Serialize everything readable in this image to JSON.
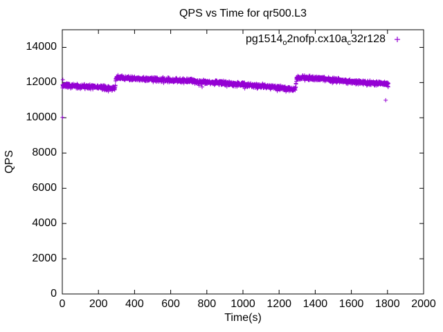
{
  "chart_data": {
    "type": "scatter",
    "title": "QPS vs Time for qr500.L3",
    "xlabel": "Time(s)",
    "ylabel": "QPS",
    "xlim": [
      0,
      2000
    ],
    "ylim": [
      0,
      15000
    ],
    "xticks": [
      0,
      200,
      400,
      600,
      800,
      1000,
      1200,
      1400,
      1600,
      1800,
      2000
    ],
    "yticks": [
      0,
      2000,
      4000,
      6000,
      8000,
      10000,
      12000,
      14000
    ],
    "grid": false,
    "tick_style": "inward-mirrored",
    "legend_position": "top-right-inside",
    "axis_color": "#000000",
    "series": [
      {
        "name": "pg1514_o2nofp.cx10a_c32r128",
        "name_parts": [
          {
            "text": "pg1514",
            "sub": false
          },
          {
            "text": "o",
            "sub": true
          },
          {
            "text": "2nofp.cx10a",
            "sub": false
          },
          {
            "text": "c",
            "sub": true
          },
          {
            "text": "32r128",
            "sub": false
          }
        ],
        "marker": "+",
        "color": "#9400D3",
        "t_range": [
          1,
          1805
        ],
        "sample_interval_s": 1,
        "trend_anchors": [
          [
            1,
            11840
          ],
          [
            60,
            11800
          ],
          [
            150,
            11770
          ],
          [
            250,
            11700
          ],
          [
            292,
            11640
          ],
          [
            297,
            12290
          ],
          [
            420,
            12230
          ],
          [
            600,
            12150
          ],
          [
            800,
            12040
          ],
          [
            1000,
            11890
          ],
          [
            1150,
            11770
          ],
          [
            1290,
            11610
          ],
          [
            1298,
            12300
          ],
          [
            1420,
            12240
          ],
          [
            1560,
            12090
          ],
          [
            1700,
            11980
          ],
          [
            1805,
            11930
          ]
        ],
        "noise_amplitude": 150,
        "low_outlier_rate": 0.02,
        "outliers": [
          [
            1,
            10020
          ],
          [
            3,
            12160
          ],
          [
            1790,
            11000
          ]
        ]
      }
    ]
  }
}
